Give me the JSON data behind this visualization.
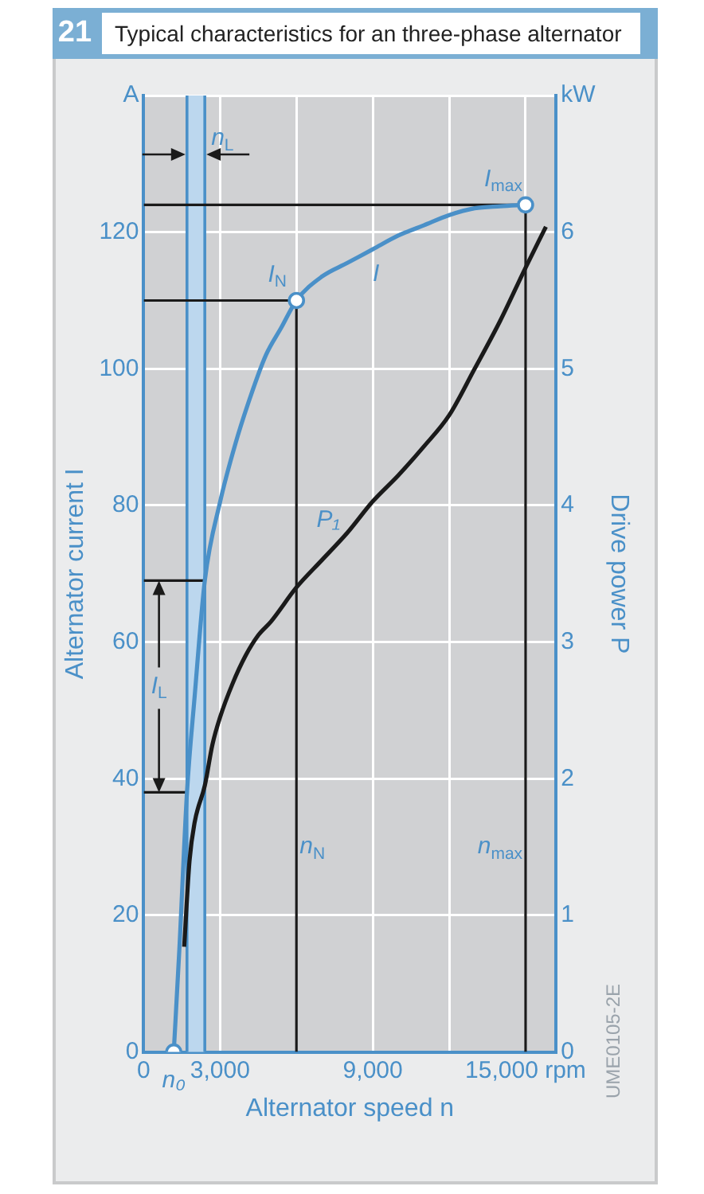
{
  "chart_data": {
    "type": "line",
    "title": "Typical characteristics for an three-phase alternator",
    "xlabel": "Alternator speed n",
    "ylabel": "Alternator current I",
    "y2label": "Drive power P",
    "xlim": [
      0,
      16200
    ],
    "xticks": [
      {
        "value": 0,
        "label": "0"
      },
      {
        "value": 3000,
        "label": "3,000"
      },
      {
        "value": 6000,
        "label": null
      },
      {
        "value": 9000,
        "label": "9,000"
      },
      {
        "value": 12000,
        "label": null
      },
      {
        "value": 15000,
        "label": "15,000 rpm"
      }
    ],
    "ylim": [
      0,
      140
    ],
    "yticks": [
      0,
      20,
      40,
      60,
      80,
      100,
      120,
      {
        "value": 140,
        "label": "A"
      }
    ],
    "y2lim": [
      0,
      7
    ],
    "y2ticks": [
      0,
      1,
      2,
      3,
      4,
      5,
      6,
      {
        "value": 7,
        "label": "kW"
      }
    ],
    "grid": true,
    "legend": false,
    "series": [
      {
        "name": "I",
        "color": "#4a90c8",
        "x": [
          1180,
          1400,
          1700,
          2000,
          2400,
          3000,
          3600,
          4200,
          4800,
          5400,
          6000,
          7000,
          8000,
          9000,
          10000,
          11000,
          12000,
          13000,
          14000,
          15000
        ],
        "values": [
          0,
          15,
          38,
          52,
          69,
          80.5,
          89,
          96,
          102,
          106,
          110,
          113.5,
          115.5,
          117.5,
          119.5,
          121,
          122.5,
          123.5,
          123.8,
          124
        ]
      },
      {
        "name": "P₁",
        "color": "#1a1a1a",
        "axis": "y2",
        "x": [
          1590,
          1800,
          2000,
          2400,
          2700,
          3000,
          3500,
          4000,
          4500,
          5000,
          6000,
          7000,
          8000,
          9000,
          10000,
          11000,
          12000,
          13000,
          14000,
          15000,
          15800
        ],
        "values": [
          0.77,
          1.4,
          1.68,
          1.95,
          2.25,
          2.45,
          2.7,
          2.9,
          3.05,
          3.15,
          3.4,
          3.6,
          3.8,
          4.03,
          4.22,
          4.43,
          4.66,
          5.0,
          5.35,
          5.74,
          6.04
        ]
      },
      {
        "color": "#1a1a1a",
        "x": [
          0,
          6000,
          6000
        ],
        "values": [
          110,
          110,
          0
        ]
      },
      {
        "color": "#1a1a1a",
        "x": [
          0,
          15000,
          15000
        ],
        "values": [
          124,
          124,
          0
        ]
      },
      {
        "color": "#1a1a1a",
        "x": [
          0,
          2400
        ],
        "values": [
          69,
          69
        ]
      },
      {
        "color": "#1a1a1a",
        "x": [
          0,
          1700
        ],
        "values": [
          38,
          38
        ]
      },
      {
        "type": "scatter",
        "marker": "circle",
        "color": "#4a90c8",
        "x": [
          1180,
          6000,
          15000
        ],
        "values": [
          0,
          110,
          124
        ]
      }
    ],
    "bands": [
      {
        "axis": "x",
        "from": 1700,
        "to": 2400,
        "label": "n$_{L}$",
        "color": "#bcd7ee"
      }
    ],
    "ref_lines": [
      {
        "axis": "x",
        "value": 1700,
        "color": "#4a90c8"
      },
      {
        "axis": "x",
        "value": 2400,
        "color": "#4a90c8"
      }
    ],
    "annotations": [
      "21",
      "UME0105-2E",
      {
        "text": "I$_{L}$",
        "x": 600,
        "y": 69
      },
      {
        "text": "I$_{N}$",
        "x": 6000,
        "y": 110
      },
      {
        "text": "I$_{max}$",
        "x": 15000,
        "y": 124
      },
      {
        "text": "n$_{N}$",
        "x": 6000,
        "y": 30
      },
      {
        "text": "n$_{max}$",
        "x": 15000,
        "y": 30
      },
      {
        "text": "n₀",
        "x": 1180,
        "y": 0
      }
    ]
  }
}
